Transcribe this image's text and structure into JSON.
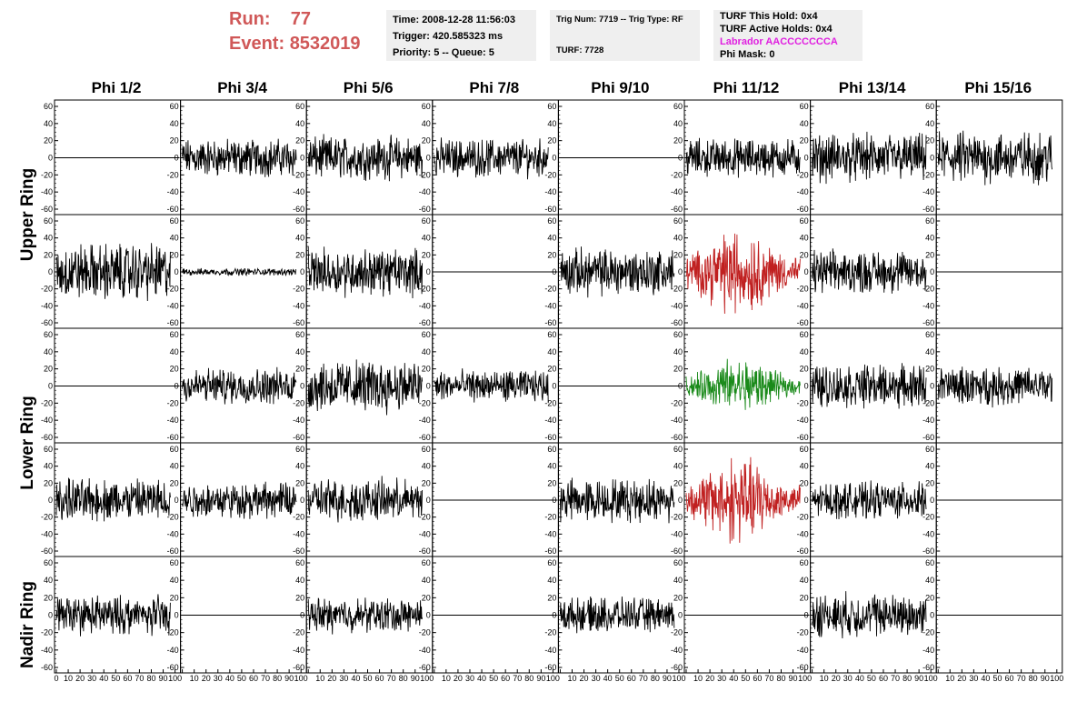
{
  "header": {
    "run_label": "Run:",
    "run_value": "77",
    "event_label": "Event:",
    "event_value": "8532019"
  },
  "info_time": {
    "time": "Time: 2008-12-28 11:56:03",
    "trigger": "Trigger: 420.585323 ms",
    "priority": "Priority: 5 -- Queue: 5"
  },
  "info_trig": {
    "trig": "Trig Num: 7719 -- Trig Type: RF",
    "turf": "TURF: 7728"
  },
  "info_turf": {
    "this_hold": "TURF This Hold: 0x4",
    "active_holds": "TURF Active Holds: 0x4",
    "labrador": "Labrador AACCCCCCCA",
    "phi_mask": "Phi Mask: 0"
  },
  "colors": {
    "header_red": "#d05858",
    "labrador_magenta": "#e020e0",
    "trace_black": "#000000",
    "trace_red": "#c02020",
    "trace_green": "#1a8a1a"
  },
  "phi_titles": [
    "Phi 1/2",
    "Phi 3/4",
    "Phi 5/6",
    "Phi 7/8",
    "Phi 9/10",
    "Phi 11/12",
    "Phi 13/14",
    "Phi 15/16"
  ],
  "ring_labels": {
    "upper": "Upper Ring",
    "lower": "Lower Ring",
    "nadir": "Nadir Ring"
  },
  "chart_data": {
    "type": "line",
    "xlim": [
      0,
      100
    ],
    "ylim": [
      -60,
      60
    ],
    "x_ticks": [
      0,
      10,
      20,
      30,
      40,
      50,
      60,
      70,
      80,
      90,
      100
    ],
    "y_ticks": [
      60,
      40,
      20,
      0,
      -20,
      -40,
      -60
    ],
    "grid": false,
    "rows": 5,
    "cols": 8,
    "traces": [
      [
        {
          "amp": 0,
          "c": "black"
        },
        {
          "amp": 16,
          "c": "black"
        },
        {
          "amp": 18,
          "c": "black"
        },
        {
          "amp": 16,
          "c": "black"
        },
        {
          "amp": 0,
          "c": "black"
        },
        {
          "amp": 16,
          "c": "black"
        },
        {
          "amp": 20,
          "c": "black"
        },
        {
          "amp": 22,
          "c": "black"
        }
      ],
      [
        {
          "amp": 24,
          "c": "black"
        },
        {
          "amp": 3,
          "c": "black"
        },
        {
          "amp": 20,
          "c": "black"
        },
        {
          "amp": 0,
          "c": "black"
        },
        {
          "amp": 20,
          "c": "black"
        },
        {
          "amp": 24,
          "c": "red"
        },
        {
          "amp": 18,
          "c": "black"
        },
        {
          "amp": 0,
          "c": "black"
        }
      ],
      [
        {
          "amp": 0,
          "c": "black"
        },
        {
          "amp": 15,
          "c": "black"
        },
        {
          "amp": 22,
          "c": "black"
        },
        {
          "amp": 13,
          "c": "black"
        },
        {
          "amp": 0,
          "c": "black"
        },
        {
          "amp": 15,
          "c": "green"
        },
        {
          "amp": 18,
          "c": "black"
        },
        {
          "amp": 16,
          "c": "black"
        }
      ],
      [
        {
          "amp": 18,
          "c": "black"
        },
        {
          "amp": 15,
          "c": "black"
        },
        {
          "amp": 18,
          "c": "black"
        },
        {
          "amp": 0,
          "c": "black"
        },
        {
          "amp": 18,
          "c": "black"
        },
        {
          "amp": 24,
          "c": "red"
        },
        {
          "amp": 15,
          "c": "black"
        },
        {
          "amp": 0,
          "c": "black"
        }
      ],
      [
        {
          "amp": 16,
          "c": "black"
        },
        {
          "amp": 0,
          "c": "black"
        },
        {
          "amp": 14,
          "c": "black"
        },
        {
          "amp": 0,
          "c": "black"
        },
        {
          "amp": 14,
          "c": "black"
        },
        {
          "amp": 0,
          "c": "black"
        },
        {
          "amp": 18,
          "c": "black"
        },
        {
          "amp": 0,
          "c": "black"
        }
      ]
    ]
  }
}
